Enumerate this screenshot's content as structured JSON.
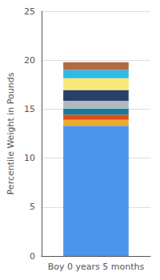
{
  "chart_data": {
    "type": "bar",
    "stacked": true,
    "categories": [
      "Boy 0 years 5 months"
    ],
    "series": [
      {
        "color": "#4d94eb",
        "values": [
          13.3
        ]
      },
      {
        "color": "#f0a830",
        "values": [
          0.6
        ]
      },
      {
        "color": "#d94f1e",
        "values": [
          0.55
        ]
      },
      {
        "color": "#1a7a99",
        "values": [
          0.6
        ]
      },
      {
        "color": "#b0b8c2",
        "values": [
          0.8
        ]
      },
      {
        "color": "#2b3f6b",
        "values": [
          1.1
        ]
      },
      {
        "color": "#f7e87a",
        "values": [
          1.2
        ]
      },
      {
        "color": "#30b8ea",
        "values": [
          0.85
        ]
      },
      {
        "color": "#b36b44",
        "values": [
          0.8
        ]
      }
    ],
    "ylabel": "Percentile Weight in Pounds",
    "ylim": [
      0,
      25
    ],
    "yticks": [
      0,
      5,
      10,
      15,
      20,
      25
    ],
    "grid": true
  }
}
